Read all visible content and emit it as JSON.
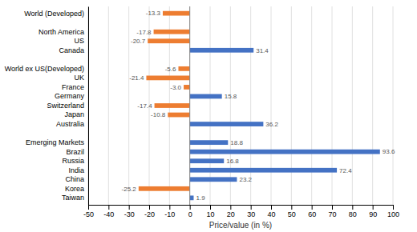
{
  "chart_data": {
    "type": "bar",
    "orientation": "horizontal",
    "categories": [
      "World (Developed)",
      null,
      "North America",
      "US",
      "Canada",
      null,
      "World ex US(Developed)",
      "UK",
      "France",
      "Germany",
      "Switzerland",
      "Japan",
      "Australia",
      null,
      "Emerging Markets",
      "Brazil",
      "Russia",
      "India",
      "China",
      "Korea",
      "Taiwan"
    ],
    "values": [
      -13.3,
      null,
      -17.8,
      -20.7,
      31.4,
      null,
      -5.6,
      -21.4,
      -3.0,
      15.8,
      -17.4,
      -10.8,
      36.2,
      null,
      18.8,
      93.6,
      16.8,
      72.4,
      23.2,
      -25.2,
      1.9
    ],
    "value_labels": [
      "-13.3",
      null,
      "-17.8",
      "-20.7",
      "31.4",
      null,
      "-5.6",
      "-21.4",
      "-3.0",
      "15.8",
      "-17.4",
      "-10.8",
      "36.2",
      null,
      "18.8",
      "93.6",
      "16.8",
      "72.4",
      "23.2",
      "-25.2",
      "1.9"
    ],
    "colors": [
      "#ED7D31",
      null,
      "#ED7D31",
      "#ED7D31",
      "#4472C4",
      null,
      "#ED7D31",
      "#ED7D31",
      "#ED7D31",
      "#4472C4",
      "#ED7D31",
      "#ED7D31",
      "#4472C4",
      null,
      "#4472C4",
      "#4472C4",
      "#4472C4",
      "#4472C4",
      "#4472C4",
      "#ED7D31",
      "#4472C4"
    ],
    "xlabel": "Price/value (in %)",
    "xlim": [
      -50,
      100
    ],
    "xticks": [
      -50,
      -40,
      -30,
      -20,
      -10,
      0,
      10,
      20,
      30,
      40,
      50,
      60,
      70,
      80,
      90,
      100
    ],
    "grid": true,
    "data_labels": true
  }
}
